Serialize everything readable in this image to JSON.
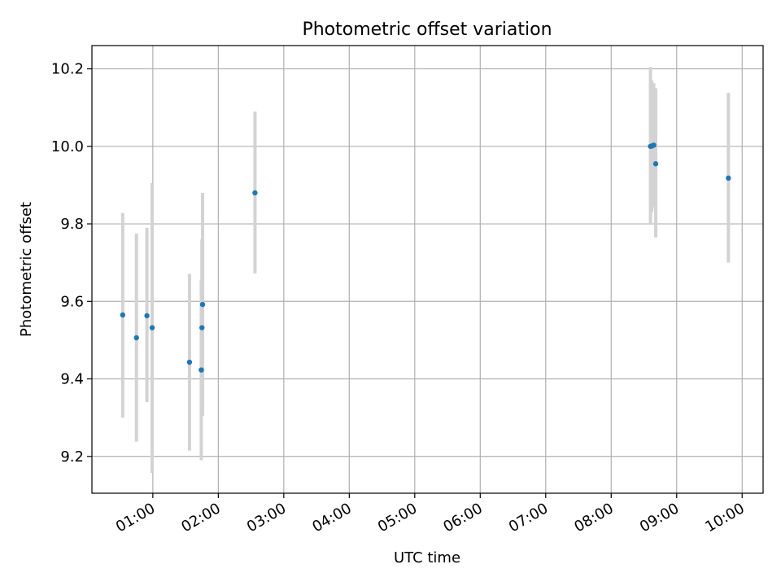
{
  "chart_data": {
    "type": "scatter",
    "title": "Photometric offset variation",
    "xlabel": "UTC time",
    "ylabel": "Photometric offset",
    "x_tick_labels": [
      "01:00",
      "02:00",
      "03:00",
      "04:00",
      "05:00",
      "06:00",
      "07:00",
      "08:00",
      "09:00",
      "10:00"
    ],
    "x_tick_values_hours": [
      1,
      2,
      3,
      4,
      5,
      6,
      7,
      8,
      9,
      10
    ],
    "y_tick_labels": [
      "9.2",
      "9.4",
      "9.6",
      "9.8",
      "10.0",
      "10.2"
    ],
    "y_tick_values": [
      9.2,
      9.4,
      9.6,
      9.8,
      10.0,
      10.2
    ],
    "xlim_hours": [
      0.07,
      10.32
    ],
    "ylim": [
      9.105,
      10.26
    ],
    "grid": true,
    "series": [
      {
        "point_color": "#1f77b4",
        "errorbar_color": "#d3d3d3",
        "points": [
          {
            "time_hours": 0.54,
            "value": 9.565,
            "low": 9.3,
            "high": 9.828
          },
          {
            "time_hours": 0.75,
            "value": 9.506,
            "low": 9.238,
            "high": 9.775
          },
          {
            "time_hours": 0.91,
            "value": 9.563,
            "low": 9.34,
            "high": 9.79
          },
          {
            "time_hours": 0.99,
            "value": 9.532,
            "low": 9.157,
            "high": 9.905
          },
          {
            "time_hours": 1.56,
            "value": 9.443,
            "low": 9.215,
            "high": 9.671
          },
          {
            "time_hours": 1.74,
            "value": 9.423,
            "low": 9.19,
            "high": 9.655
          },
          {
            "time_hours": 1.75,
            "value": 9.532,
            "low": 9.305,
            "high": 9.76
          },
          {
            "time_hours": 1.76,
            "value": 9.592,
            "low": 9.305,
            "high": 9.88
          },
          {
            "time_hours": 2.56,
            "value": 9.88,
            "low": 9.672,
            "high": 10.09
          },
          {
            "time_hours": 8.6,
            "value": 10.0,
            "low": 9.8,
            "high": 10.205
          },
          {
            "time_hours": 8.62,
            "value": 10.001,
            "low": 9.83,
            "high": 10.17
          },
          {
            "time_hours": 8.65,
            "value": 10.003,
            "low": 9.843,
            "high": 10.163
          },
          {
            "time_hours": 8.68,
            "value": 9.955,
            "low": 9.765,
            "high": 10.15
          },
          {
            "time_hours": 9.79,
            "value": 9.918,
            "low": 9.7,
            "high": 10.138
          }
        ]
      }
    ]
  }
}
